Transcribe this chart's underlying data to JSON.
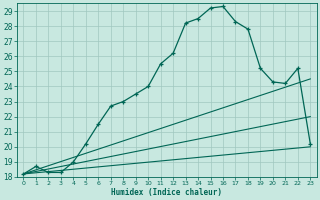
{
  "xlabel": "Humidex (Indice chaleur)",
  "xlim": [
    -0.5,
    23.5
  ],
  "ylim": [
    18,
    29.5
  ],
  "xticks": [
    0,
    1,
    2,
    3,
    4,
    5,
    6,
    7,
    8,
    9,
    10,
    11,
    12,
    13,
    14,
    15,
    16,
    17,
    18,
    19,
    20,
    21,
    22,
    23
  ],
  "yticks": [
    18,
    19,
    20,
    21,
    22,
    23,
    24,
    25,
    26,
    27,
    28,
    29
  ],
  "bg_color": "#c8e8e0",
  "line_color": "#006655",
  "grid_color": "#a0c8c0",
  "main_line": {
    "x": [
      0,
      1,
      2,
      3,
      4,
      5,
      6,
      7,
      8,
      9,
      10,
      11,
      12,
      13,
      14,
      15,
      16,
      17,
      18,
      19,
      20,
      21,
      22,
      23
    ],
    "y": [
      18.2,
      18.7,
      18.3,
      18.3,
      19.0,
      20.2,
      21.5,
      22.7,
      23.0,
      23.5,
      24.0,
      25.5,
      26.2,
      28.2,
      28.5,
      29.2,
      29.3,
      28.3,
      27.8,
      25.2,
      24.3,
      24.2,
      25.2,
      20.2
    ]
  },
  "line2": {
    "x": [
      0,
      23
    ],
    "y": [
      18.2,
      24.5
    ]
  },
  "line3": {
    "x": [
      0,
      23
    ],
    "y": [
      18.2,
      22.0
    ]
  },
  "line4": {
    "x": [
      0,
      23
    ],
    "y": [
      18.2,
      20.0
    ]
  }
}
